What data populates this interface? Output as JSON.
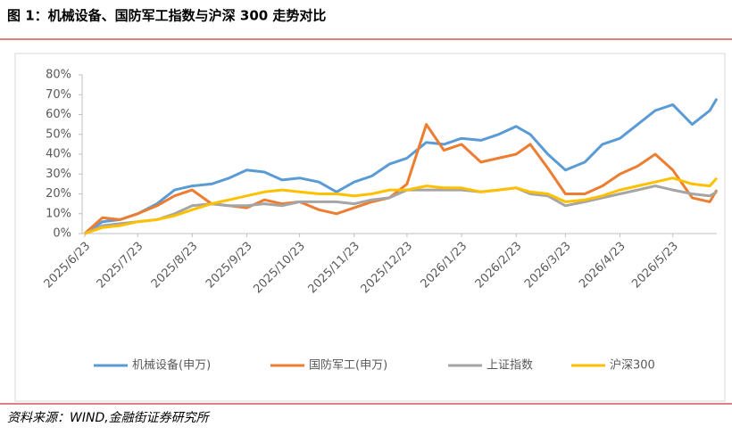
{
  "header": {
    "title": "图 1：机械设备、国防军工指数与沪深 300 走势对比"
  },
  "footer": {
    "source": "资料来源：WIND,金融街证券研究所"
  },
  "chart_data": {
    "type": "line",
    "x": [
      "2025/6/23",
      "2025/7/3",
      "2025/7/13",
      "2025/7/23",
      "2025/8/3",
      "2025/8/13",
      "2025/8/23",
      "2025/9/3",
      "2025/9/13",
      "2025/9/23",
      "2025/10/3",
      "2025/10/13",
      "2025/10/23",
      "2025/11/3",
      "2025/11/13",
      "2025/11/23",
      "2025/12/3",
      "2025/12/13",
      "2025/12/23",
      "2026/1/3",
      "2026/1/13",
      "2026/1/23",
      "2026/2/3",
      "2026/2/13",
      "2026/2/23",
      "2026/3/3",
      "2026/3/13",
      "2026/3/23",
      "2026/4/3",
      "2026/4/13",
      "2026/4/23",
      "2026/5/3",
      "2026/5/13",
      "2026/5/23",
      "2026/6/3",
      "2026/6/13",
      "2026/6/17"
    ],
    "series": [
      {
        "name": "机械设备(申万)",
        "color": "#5b9bd5",
        "values": [
          0,
          6,
          7,
          10,
          15,
          22,
          24,
          25,
          28,
          32,
          31,
          27,
          28,
          26,
          21,
          26,
          29,
          35,
          38,
          46,
          45,
          48,
          47,
          50,
          54,
          50,
          40,
          32,
          36,
          45,
          48,
          55,
          62,
          65,
          55,
          62,
          68
        ]
      },
      {
        "name": "国防军工(申万)",
        "color": "#ed7d31",
        "values": [
          0,
          8,
          7,
          10,
          14,
          19,
          22,
          15,
          14,
          13,
          17,
          15,
          16,
          12,
          10,
          13,
          16,
          18,
          25,
          55,
          42,
          45,
          36,
          38,
          40,
          45,
          33,
          20,
          20,
          24,
          30,
          34,
          40,
          32,
          18,
          16,
          22
        ]
      },
      {
        "name": "上证指数",
        "color": "#a5a5a5",
        "values": [
          0,
          4,
          5,
          6,
          7,
          10,
          14,
          15,
          14,
          14,
          15,
          14,
          16,
          16,
          16,
          15,
          17,
          18,
          22,
          22,
          22,
          22,
          21,
          22,
          23,
          20,
          19,
          14,
          16,
          18,
          20,
          22,
          24,
          22,
          20,
          19,
          21
        ]
      },
      {
        "name": "沪深300",
        "color": "#ffc000",
        "values": [
          0,
          3,
          4,
          6,
          7,
          9,
          12,
          15,
          17,
          19,
          21,
          22,
          21,
          20,
          20,
          19,
          20,
          22,
          22,
          24,
          23,
          23,
          21,
          22,
          23,
          21,
          20,
          16,
          17,
          19,
          22,
          24,
          26,
          28,
          25,
          24,
          28
        ]
      }
    ],
    "xlim": [
      "2025/6/23",
      "2026/6/17"
    ],
    "xticks": [
      "2025/6/23",
      "2025/7/23",
      "2025/8/23",
      "2025/9/23",
      "2025/10/23",
      "2025/11/23",
      "2025/12/23",
      "2026/1/23",
      "2026/2/23",
      "2026/3/23",
      "2026/4/23",
      "2026/5/23"
    ],
    "ylim": [
      0,
      80
    ],
    "yticks": [
      {
        "value": 0,
        "label": "0%"
      },
      {
        "value": 10,
        "label": "10%"
      },
      {
        "value": 20,
        "label": "20%"
      },
      {
        "value": 30,
        "label": "30%"
      },
      {
        "value": 40,
        "label": "40%"
      },
      {
        "value": 50,
        "label": "50%"
      },
      {
        "value": 60,
        "label": "60%"
      },
      {
        "value": 70,
        "label": "70%"
      },
      {
        "value": 80,
        "label": "80%"
      }
    ],
    "legend": "bottom"
  }
}
